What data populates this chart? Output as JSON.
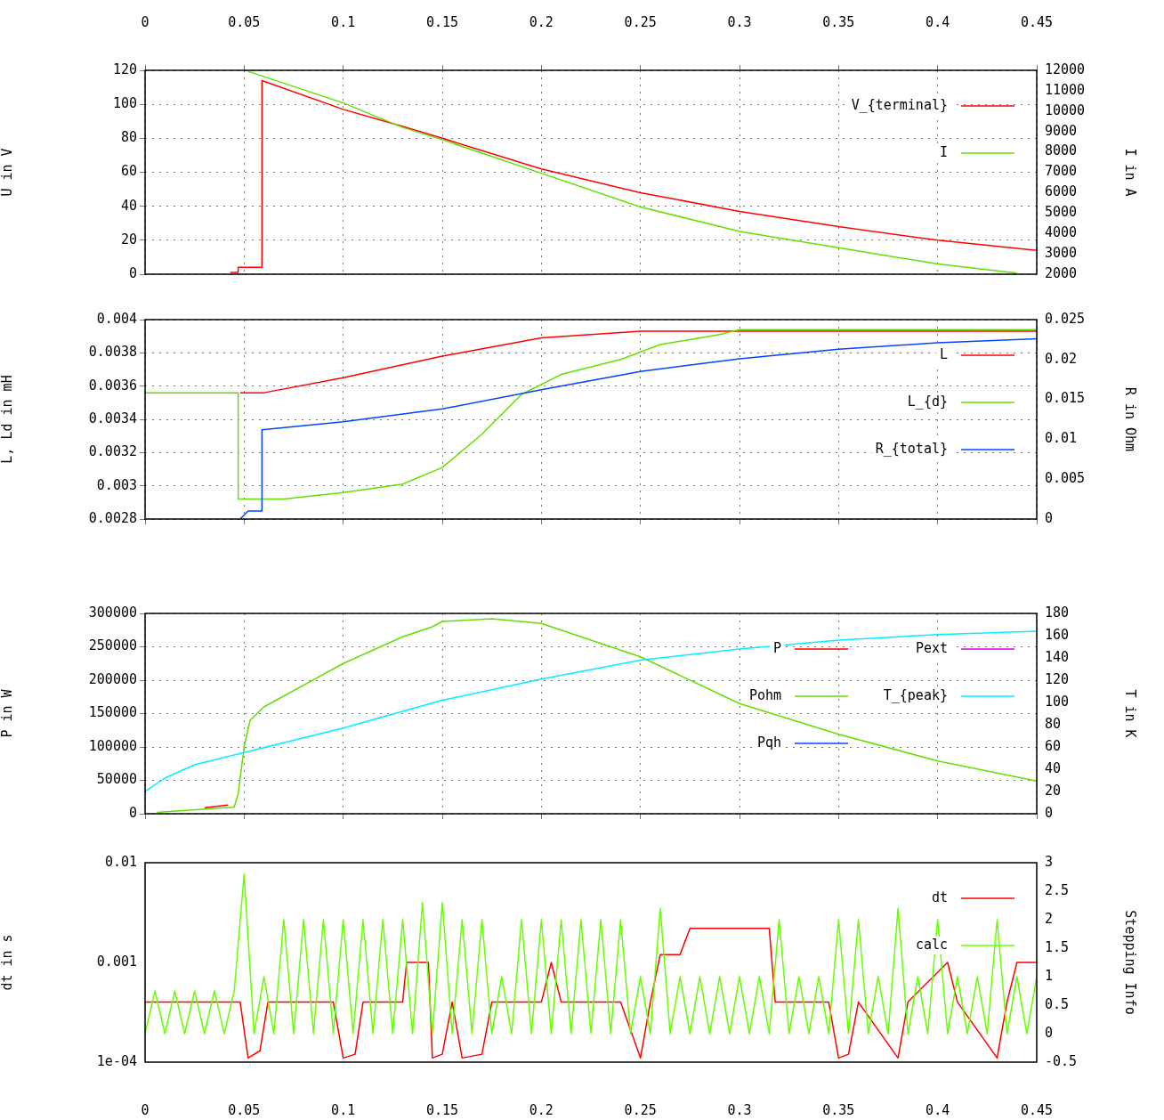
{
  "chart_data": [
    {
      "type": "line",
      "xlim": [
        0,
        0.45
      ],
      "xticks": [
        0,
        0.05,
        0.1,
        0.15,
        0.2,
        0.25,
        0.3,
        0.35,
        0.4,
        0.45
      ],
      "ylim": [
        0,
        120
      ],
      "yticks": [
        0,
        20,
        40,
        60,
        80,
        100,
        120
      ],
      "y2lim": [
        2000,
        12000
      ],
      "y2ticks": [
        2000,
        3000,
        4000,
        5000,
        6000,
        7000,
        8000,
        9000,
        10000,
        11000,
        12000
      ],
      "ylabel": "U in V",
      "y2label": "I in A",
      "grid": true,
      "legend": "top right",
      "series": [
        {
          "name": "V_{terminal}",
          "color": "#ff0000",
          "x": [
            0.043,
            0.047,
            0.047,
            0.059,
            0.059,
            0.1,
            0.13,
            0.15,
            0.2,
            0.25,
            0.3,
            0.35,
            0.4,
            0.45
          ],
          "values": [
            1,
            1,
            4,
            4,
            114,
            97,
            87,
            80,
            62,
            48,
            37,
            28,
            20,
            14
          ]
        },
        {
          "name": "I",
          "color": "#66dd00",
          "axis": "y2",
          "x": [
            0.052,
            0.1,
            0.13,
            0.15,
            0.2,
            0.25,
            0.3,
            0.35,
            0.4,
            0.44
          ],
          "values": [
            11950,
            10400,
            9200,
            8600,
            6950,
            5300,
            4100,
            3300,
            2500,
            2050
          ]
        }
      ]
    },
    {
      "type": "line",
      "xlim": [
        0,
        0.45
      ],
      "xticks": [
        0,
        0.05,
        0.1,
        0.15,
        0.2,
        0.25,
        0.3,
        0.35,
        0.4,
        0.45
      ],
      "tick_labels": "y",
      "ylim": [
        0.0028,
        0.004
      ],
      "yticks": [
        0.0028,
        0.003,
        0.0032,
        0.0034,
        0.0036,
        0.0038,
        0.004
      ],
      "y2lim": [
        0,
        0.025
      ],
      "y2ticks": [
        0,
        0.005,
        0.01,
        0.015,
        0.02,
        0.025
      ],
      "ylabel": "L, Ld in mH",
      "y2label": "R in Ohm",
      "grid": true,
      "legend": "top right",
      "series": [
        {
          "name": "L",
          "color": "#ff0000",
          "x": [
            0.048,
            0.06,
            0.1,
            0.15,
            0.2,
            0.25,
            0.45
          ],
          "values": [
            0.00356,
            0.00356,
            0.00365,
            0.00378,
            0.00389,
            0.00393,
            0.00393
          ]
        },
        {
          "name": "L_{d}",
          "color": "#66dd00",
          "x": [
            0,
            0.047,
            0.047,
            0.07,
            0.1,
            0.13,
            0.15,
            0.17,
            0.19,
            0.21,
            0.24,
            0.26,
            0.29,
            0.3,
            0.45
          ],
          "values": [
            0.00356,
            0.00356,
            0.00292,
            0.00292,
            0.00296,
            0.00301,
            0.00311,
            0.00331,
            0.00355,
            0.00367,
            0.00376,
            0.00385,
            0.00391,
            0.00394,
            0.00394
          ]
        },
        {
          "name": "R_{total}",
          "color": "#0044ff",
          "axis": "y2",
          "x": [
            0.048,
            0.05,
            0.052,
            0.059,
            0.059,
            0.1,
            0.15,
            0.2,
            0.25,
            0.3,
            0.35,
            0.4,
            0.45
          ],
          "values": [
            0,
            0.0005,
            0.001,
            0.001,
            0.0112,
            0.0122,
            0.0138,
            0.0162,
            0.0185,
            0.0201,
            0.0213,
            0.0221,
            0.0226
          ]
        }
      ]
    },
    {
      "type": "line",
      "xlim": [
        0,
        0.45
      ],
      "xticks": [
        0,
        0.05,
        0.1,
        0.15,
        0.2,
        0.25,
        0.3,
        0.35,
        0.4,
        0.45
      ],
      "tick_labels": "y",
      "ylim": [
        0,
        300000
      ],
      "yticks": [
        0,
        50000,
        100000,
        150000,
        200000,
        250000,
        300000
      ],
      "y2lim": [
        0,
        180
      ],
      "y2ticks": [
        0,
        20,
        40,
        60,
        80,
        100,
        120,
        140,
        160,
        180
      ],
      "ylabel": "P in W",
      "y2label": "T in K",
      "grid": true,
      "legend": "top right",
      "series": [
        {
          "name": "P",
          "color": "#ff0000",
          "x": [
            0.03,
            0.042
          ],
          "values": [
            9000,
            13000
          ]
        },
        {
          "name": "Pohm",
          "color": "#66dd00",
          "x": [
            0.006,
            0.045,
            0.047,
            0.05,
            0.053,
            0.06,
            0.1,
            0.13,
            0.145,
            0.15,
            0.175,
            0.2,
            0.25,
            0.3,
            0.35,
            0.4,
            0.45
          ],
          "values": [
            2000,
            10000,
            30000,
            100000,
            140000,
            160000,
            225000,
            265000,
            280000,
            288000,
            292000,
            285000,
            235000,
            165000,
            119000,
            79000,
            49000
          ]
        },
        {
          "name": "Pqh",
          "color": "#0044ff"
        },
        {
          "name": "Pext",
          "color": "#dd00dd"
        },
        {
          "name": "T_{peak}",
          "color": "#00eeff",
          "axis": "y2",
          "x": [
            0,
            0.01,
            0.025,
            0.05,
            0.1,
            0.15,
            0.2,
            0.25,
            0.3,
            0.35,
            0.4,
            0.45
          ],
          "values": [
            20,
            32,
            44,
            55,
            77,
            102,
            121,
            138,
            148,
            156,
            161,
            164
          ]
        }
      ]
    },
    {
      "type": "line",
      "xlim": [
        0,
        0.45
      ],
      "xticks": [
        0,
        0.05,
        0.1,
        0.15,
        0.2,
        0.25,
        0.3,
        0.35,
        0.4,
        0.45
      ],
      "log": "y",
      "ylim": [
        0.0001,
        0.01
      ],
      "yticks": [
        {
          "value": 0.0001,
          "label": "1e-04"
        },
        0.001,
        0.01
      ],
      "y2lim": [
        -0.5,
        3
      ],
      "y2ticks": [
        -0.5,
        0,
        0.5,
        1,
        1.5,
        2,
        2.5,
        3
      ],
      "ylabel": "dt in s",
      "y2label": "Stepping Info",
      "legend": "top right",
      "series": [
        {
          "name": "dt",
          "color": "#ff0000",
          "x": [
            0,
            0.048,
            0.052,
            0.058,
            0.062,
            0.095,
            0.1,
            0.106,
            0.11,
            0.13,
            0.132,
            0.143,
            0.145,
            0.15,
            0.155,
            0.16,
            0.17,
            0.175,
            0.2,
            0.205,
            0.21,
            0.24,
            0.25,
            0.255,
            0.26,
            0.27,
            0.275,
            0.315,
            0.318,
            0.345,
            0.35,
            0.355,
            0.36,
            0.38,
            0.385,
            0.405,
            0.41,
            0.43,
            0.435,
            0.44,
            0.45
          ],
          "values": [
            0.0004,
            0.0004,
            0.00011,
            0.00013,
            0.0004,
            0.0004,
            0.00011,
            0.00012,
            0.0004,
            0.0004,
            0.001,
            0.001,
            0.00011,
            0.00012,
            0.0004,
            0.00011,
            0.00012,
            0.0004,
            0.0004,
            0.001,
            0.0004,
            0.0004,
            0.00011,
            0.0004,
            0.0012,
            0.0012,
            0.0022,
            0.0022,
            0.0004,
            0.0004,
            0.00011,
            0.00012,
            0.0004,
            0.00011,
            0.0004,
            0.001,
            0.0004,
            0.00011,
            0.0004,
            0.001,
            0.001
          ]
        },
        {
          "name": "calc",
          "color": "#66ff00",
          "axis": "y2",
          "x": [
            0,
            0.005,
            0.01,
            0.015,
            0.02,
            0.025,
            0.03,
            0.035,
            0.04,
            0.045,
            0.05,
            0.055,
            0.06,
            0.065,
            0.07,
            0.075,
            0.08,
            0.085,
            0.09,
            0.095,
            0.1,
            0.105,
            0.11,
            0.115,
            0.12,
            0.125,
            0.13,
            0.135,
            0.14,
            0.145,
            0.15,
            0.155,
            0.16,
            0.165,
            0.17,
            0.175,
            0.18,
            0.185,
            0.19,
            0.195,
            0.2,
            0.205,
            0.21,
            0.215,
            0.22,
            0.225,
            0.23,
            0.235,
            0.24,
            0.245,
            0.25,
            0.255,
            0.26,
            0.265,
            0.27,
            0.275,
            0.28,
            0.285,
            0.29,
            0.295,
            0.3,
            0.305,
            0.31,
            0.315,
            0.32,
            0.325,
            0.33,
            0.335,
            0.34,
            0.345,
            0.35,
            0.355,
            0.36,
            0.365,
            0.37,
            0.375,
            0.38,
            0.385,
            0.39,
            0.395,
            0.4,
            0.405,
            0.41,
            0.415,
            0.42,
            0.425,
            0.43,
            0.435,
            0.44,
            0.445,
            0.45
          ],
          "values": [
            0,
            0.75,
            0,
            0.75,
            0,
            0.75,
            0,
            0.75,
            0,
            0.75,
            2.8,
            0,
            1,
            0,
            2,
            0,
            2,
            0,
            2,
            0,
            2,
            0,
            2,
            0,
            2,
            0,
            2,
            0,
            2.3,
            0,
            2.3,
            0,
            2,
            0,
            2,
            0,
            1,
            0,
            2,
            0,
            2,
            0,
            2,
            0,
            2,
            0,
            2,
            0,
            2,
            0,
            1,
            0,
            2.2,
            0,
            1,
            0,
            1,
            0,
            1,
            0,
            1,
            0,
            1,
            0,
            2,
            0,
            1,
            0,
            1,
            0,
            2,
            0,
            2,
            0,
            1,
            0,
            2.2,
            0,
            1,
            0,
            2,
            0,
            1,
            0,
            1,
            0,
            2,
            0,
            1,
            0,
            1
          ]
        }
      ]
    }
  ]
}
